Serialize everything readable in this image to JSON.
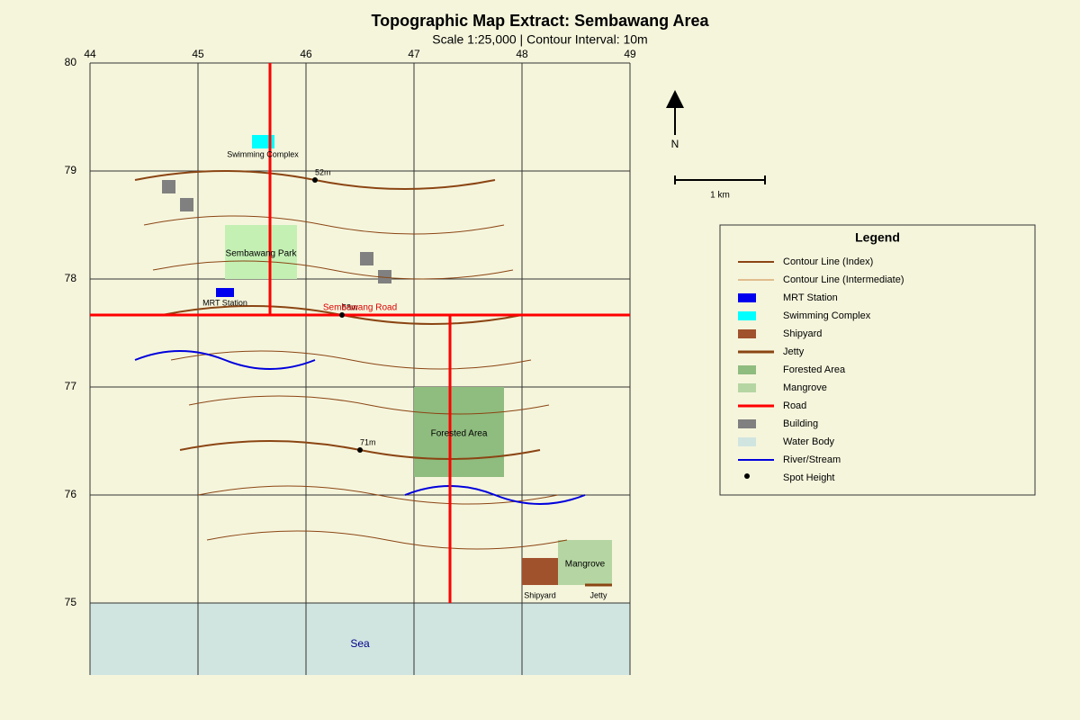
{
  "header": {
    "title": "Topographic Map Extract: Sembawang Area",
    "subtitle": "Scale 1:25,000 | Contour Interval: 10m"
  },
  "grid": {
    "eastings": [
      "44",
      "45",
      "46",
      "47",
      "48",
      "49"
    ],
    "northings": [
      "80",
      "79",
      "78",
      "77",
      "76",
      "75"
    ]
  },
  "map_labels": {
    "swimming": "Swimming Complex",
    "park": "Sembawang Park",
    "mrt": "MRT Station",
    "road": "Sembawang Road",
    "forest": "Forested Area",
    "mangrove": "Mangrove",
    "shipyard": "Shipyard",
    "jetty": "Jetty",
    "sea": "Sea"
  },
  "spot_heights": [
    "52m",
    "58m",
    "71m"
  ],
  "north": "N",
  "scale_bar": "1 km",
  "legend": {
    "title": "Legend",
    "items": [
      "Contour Line (Index)",
      "Contour Line (Intermediate)",
      "MRT Station",
      "Swimming Complex",
      "Shipyard",
      "Jetty",
      "Forested Area",
      "Mangrove",
      "Road",
      "Building",
      "Water Body",
      "River/Stream",
      "Spot Height"
    ]
  }
}
